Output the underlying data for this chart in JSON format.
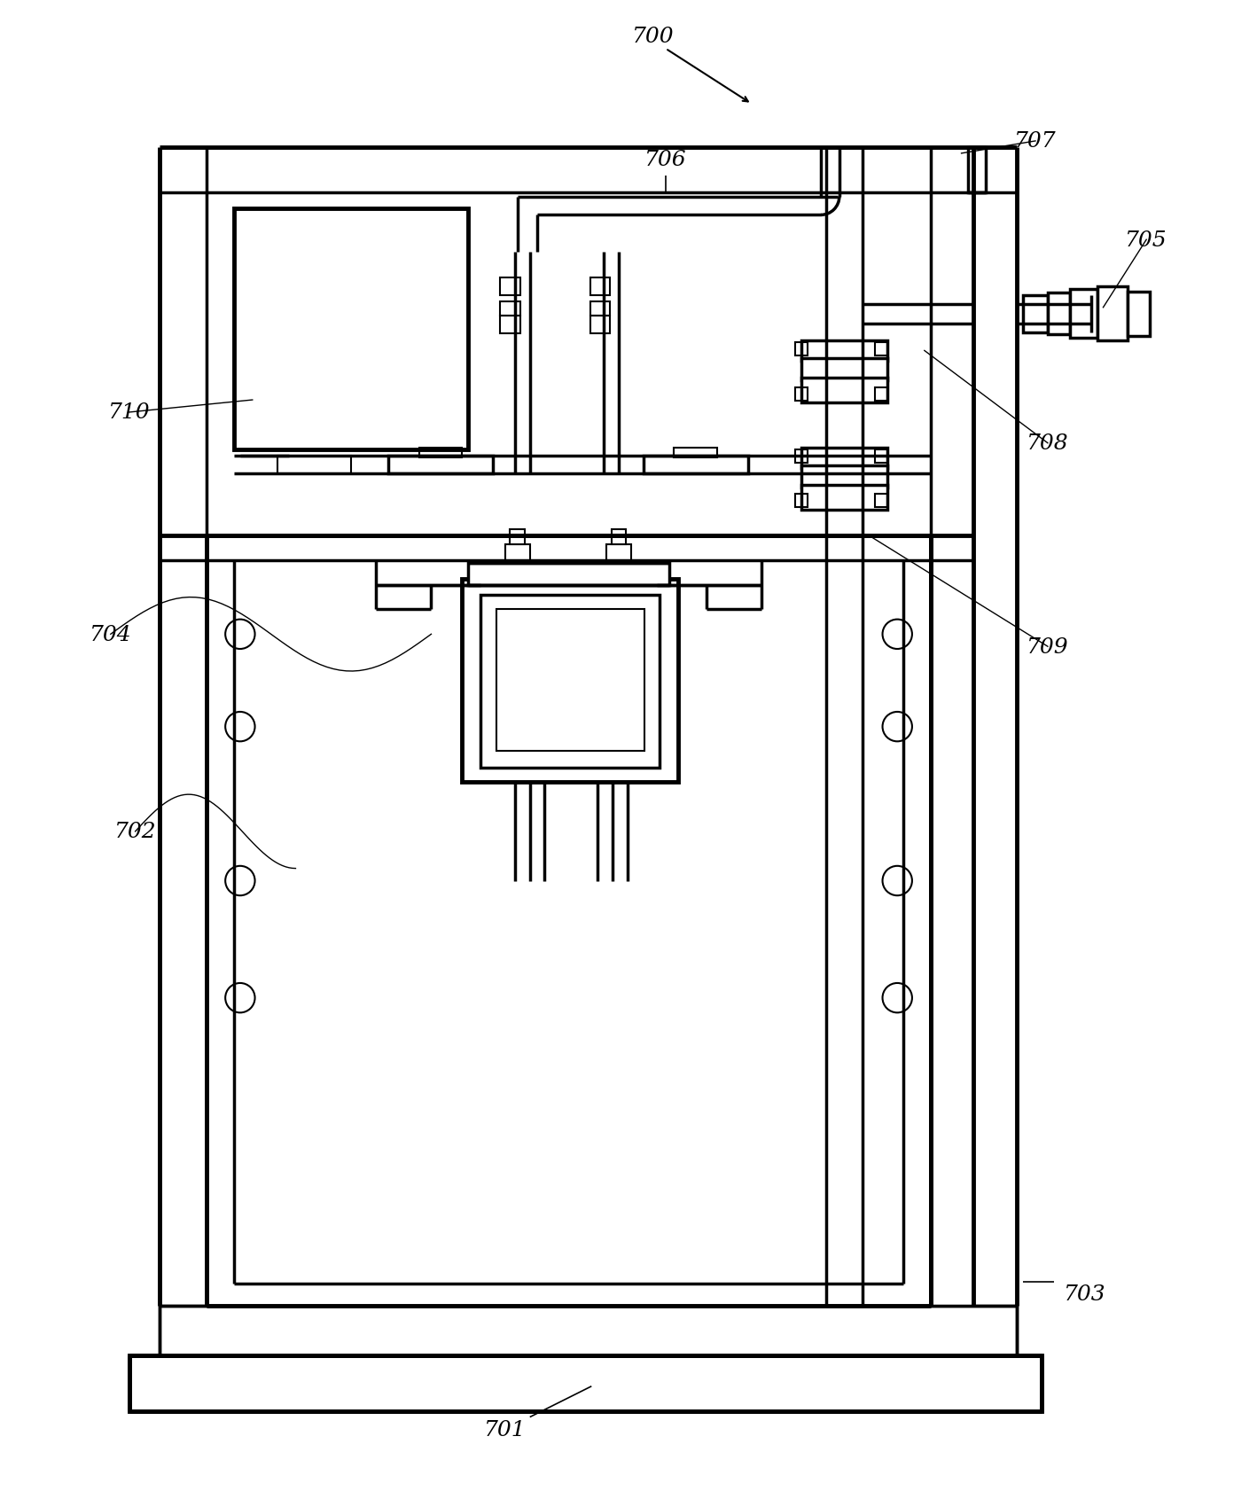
{
  "bg_color": "#ffffff",
  "fig_width": 14.18,
  "fig_height": 16.83,
  "label_fs": 18,
  "lw_outer": 3.5,
  "lw_mid": 2.5,
  "lw_thin": 1.5,
  "lw_hair": 1.0
}
